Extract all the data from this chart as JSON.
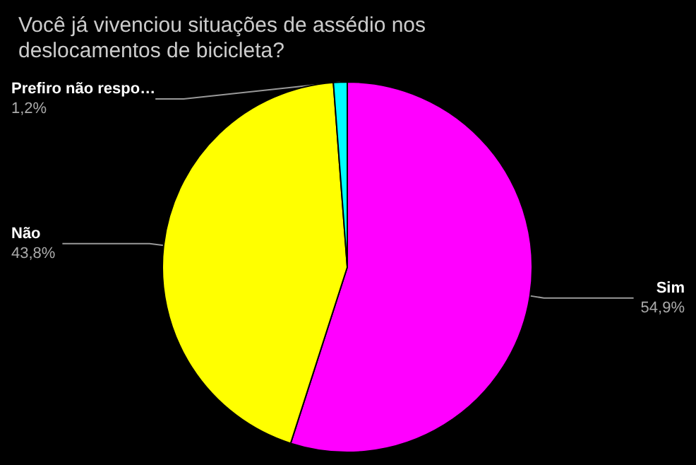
{
  "chart_data": {
    "type": "pie",
    "title": "Você já vivenciou situações de assédio nos\ndeslocamentos de bicicleta?",
    "categories": [
      "Sim",
      "Não",
      "Prefiro não respo…"
    ],
    "values": [
      54.9,
      43.8,
      1.2
    ],
    "value_labels": [
      "54,9%",
      "43,8%",
      "1,2%"
    ],
    "colors": [
      "#ff00ff",
      "#ffff00",
      "#00ffff"
    ],
    "data_labels": true,
    "legend": false
  }
}
